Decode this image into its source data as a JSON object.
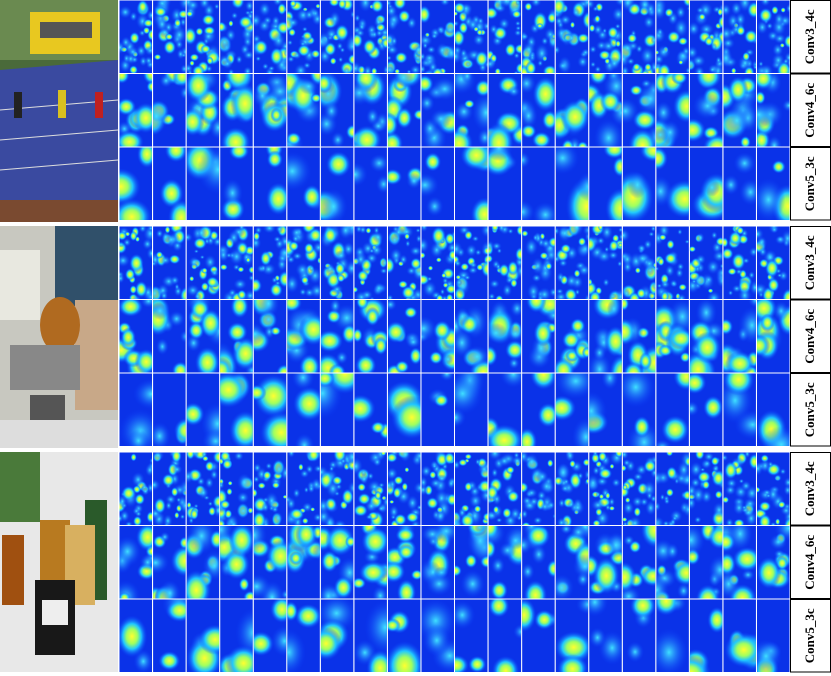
{
  "blocks": [
    {
      "layers": [
        "Conv3_4c",
        "Conv4_6c",
        "Conv5_3c"
      ]
    },
    {
      "layers": [
        "Conv3_4c",
        "Conv4_6c",
        "Conv5_3c"
      ]
    },
    {
      "layers": [
        "Conv3_4c",
        "Conv4_6c",
        "Conv5_3c"
      ]
    }
  ]
}
